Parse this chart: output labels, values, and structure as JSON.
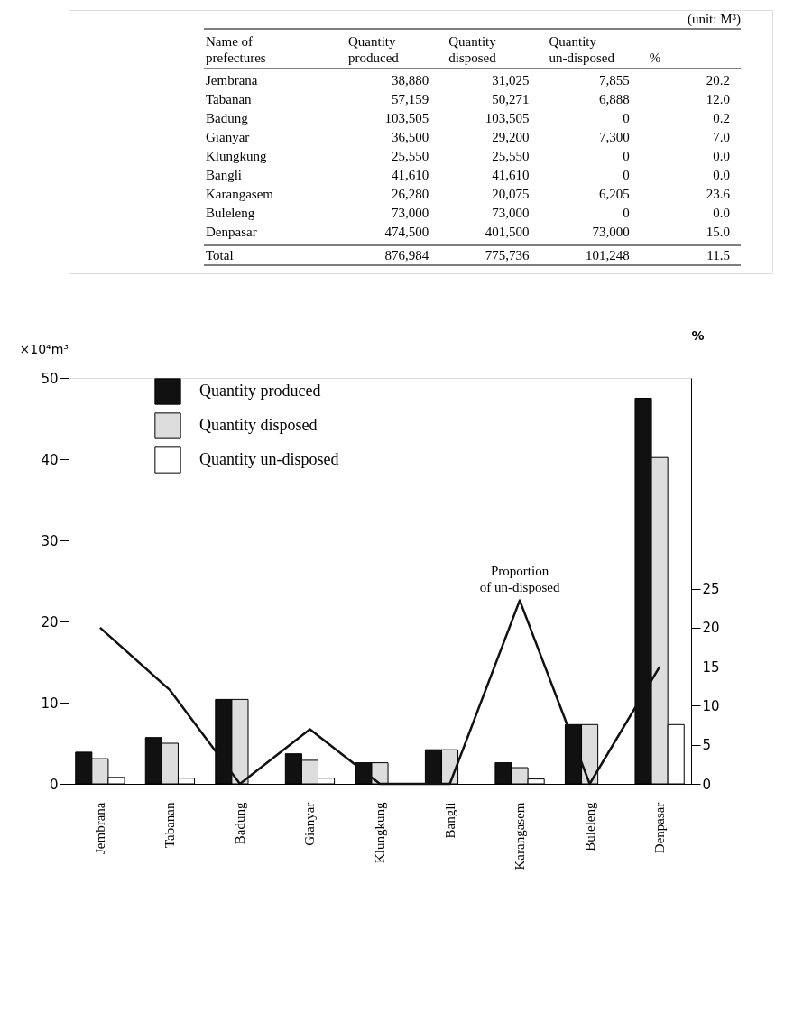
{
  "chart_data": [
    {
      "type": "other",
      "annotations": [
        "(unit: M³)",
        "Name of prefectures",
        "Quantity produced",
        "Quantity disposed",
        "Quantity un-disposed",
        "%",
        "Jembrana",
        "38,880",
        "31,025",
        "7,855",
        "20.2",
        "Tabanan",
        "57,159",
        "50,271",
        "6,888",
        "12.0",
        "Badung",
        "103,505",
        "103,505",
        "0",
        "0.2",
        "Gianyar",
        "36,500",
        "29,200",
        "7,300",
        "7.0",
        "Klungkung",
        "25,550",
        "25,550",
        "0",
        "0.0",
        "Bangli",
        "41,610",
        "41,610",
        "0",
        "0.0",
        "Karangasem",
        "26,280",
        "20,075",
        "6,205",
        "23.6",
        "Buleleng",
        "73,000",
        "73,000",
        "0",
        "0.0",
        "Denpasar",
        "474,500",
        "401,500",
        "73,000",
        "15.0",
        "Total",
        "876,984",
        "775,736",
        "101,248",
        "11.5"
      ]
    },
    {
      "type": "bar",
      "categories": [
        "Jembrana",
        "Tabanan",
        "Badung",
        "Gianyar",
        "Klungkung",
        "Bangli",
        "Karangasem",
        "Buleleng",
        "Denpasar"
      ],
      "ylabel": "×10⁴m³",
      "y2label": "%",
      "ylim": [
        0,
        50
      ],
      "yticks": [
        0,
        10,
        20,
        30,
        40,
        50
      ],
      "y2lim": [
        0,
        52
      ],
      "y2ticks": [
        0,
        5,
        10,
        15,
        20,
        25
      ],
      "grid": false,
      "legend": "top left",
      "series": [
        {
          "name": "Quantity produced",
          "color": "#111111",
          "values": [
            3.9,
            5.7,
            10.4,
            3.7,
            2.6,
            4.2,
            2.6,
            7.3,
            47.5
          ]
        },
        {
          "name": "Quantity disposed",
          "color": "#dddddd",
          "values": [
            3.1,
            5.0,
            10.4,
            2.9,
            2.6,
            4.2,
            2.0,
            7.3,
            40.2
          ]
        },
        {
          "name": "Quantity un-disposed",
          "color": "#ffffff",
          "values": [
            0.8,
            0.7,
            0,
            0.7,
            0,
            0,
            0.6,
            0,
            7.3
          ]
        },
        {
          "name": "Proportion of un-disposed",
          "type": "line",
          "axis": "y2",
          "color": "#111111",
          "line_style": "solid",
          "values": [
            20,
            12,
            0,
            7,
            0,
            0,
            23.5,
            0,
            15
          ]
        }
      ]
    }
  ]
}
